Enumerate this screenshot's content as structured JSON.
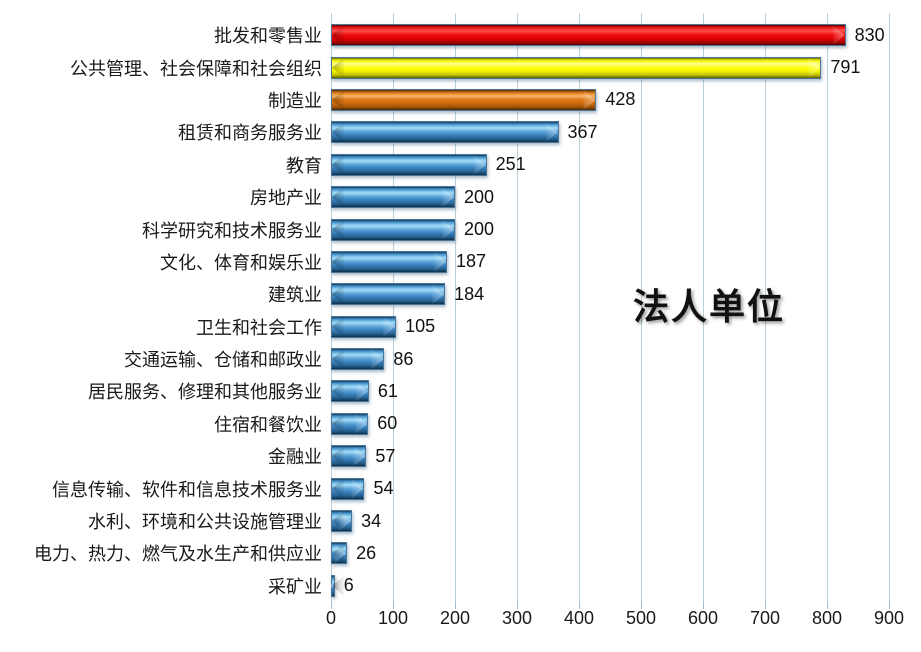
{
  "chart_data": {
    "type": "bar",
    "orientation": "horizontal",
    "annotation": "法人单位",
    "grid": true,
    "legend": "none",
    "xlim": [
      0,
      900
    ],
    "x_ticks": [
      "0",
      "100",
      "200",
      "300",
      "400",
      "500",
      "600",
      "700",
      "800",
      "900"
    ],
    "categories": [
      "批发和零售业",
      "公共管理、社会保障和社会组织",
      "制造业",
      "租赁和商务服务业",
      "教育",
      "房地产业",
      "科学研究和技术服务业",
      "文化、体育和娱乐业",
      "建筑业",
      "卫生和社会工作",
      "交通运输、仓储和邮政业",
      "居民服务、修理和其他服务业",
      "住宿和餐饮业",
      "金融业",
      "信息传输、软件和信息技术服务业",
      "水利、环境和公共设施管理业",
      "电力、热力、燃气及水生产和供应业",
      "采矿业"
    ],
    "values": [
      830,
      791,
      428,
      367,
      251,
      200,
      200,
      187,
      184,
      105,
      86,
      61,
      60,
      57,
      54,
      34,
      26,
      6
    ],
    "data_labels": [
      "830",
      "791",
      "428",
      "367",
      "251",
      "200",
      "200",
      "187",
      "184",
      "105",
      "86",
      "61",
      "60",
      "57",
      "54",
      "34",
      "26",
      "6"
    ],
    "bar_colors": [
      "red",
      "yellow",
      "orange",
      "blue",
      "blue",
      "blue",
      "blue",
      "blue",
      "blue",
      "blue",
      "blue",
      "blue",
      "blue",
      "blue",
      "blue",
      "blue",
      "blue",
      "blue"
    ]
  },
  "colors": {
    "bar_blue": "#3a82bf",
    "bar_red": "#e60000",
    "bar_yellow": "#f5f500",
    "bar_orange": "#d06c0c",
    "gridline": "#b9ced9",
    "text": "#111111"
  }
}
